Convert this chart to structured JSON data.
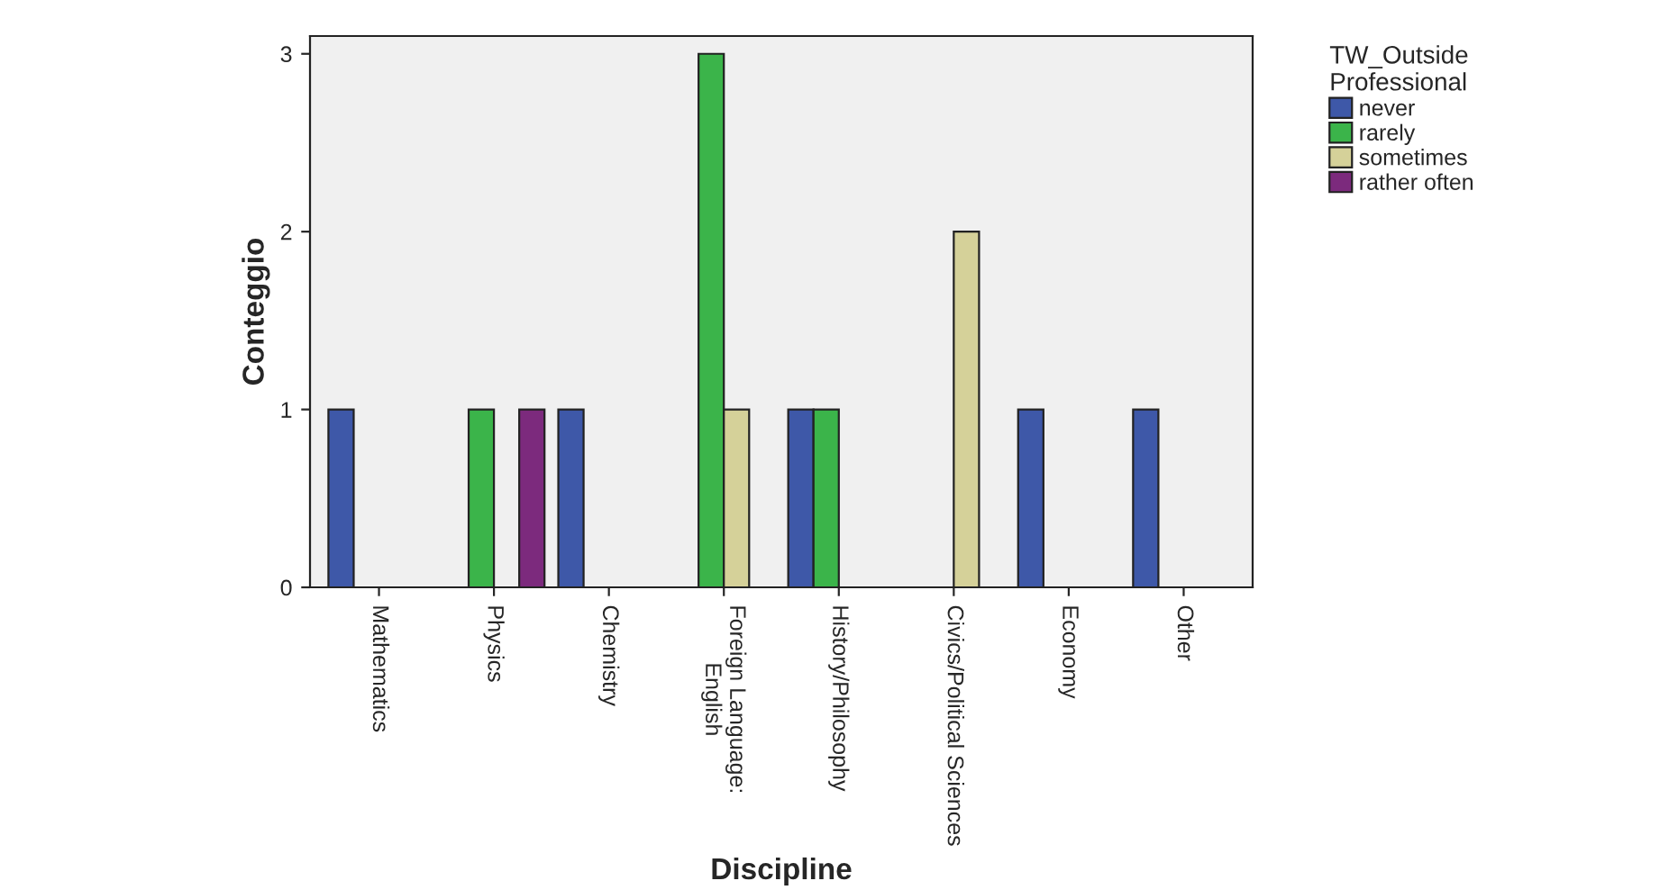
{
  "chart_data": {
    "type": "bar",
    "xlabel": "Discipline",
    "ylabel": "Conteggio",
    "legend_title": "TW_Outside\nProfessional",
    "categories": [
      "Mathematics",
      "Physics",
      "Chemistry",
      "Foreign Language:\nEnglish",
      "History/Philosophy",
      "Civics/Political Sciences",
      "Economy",
      "Other"
    ],
    "series": [
      {
        "name": "never",
        "color": "#3e58a8",
        "values": [
          1,
          null,
          1,
          null,
          1,
          null,
          1,
          1
        ]
      },
      {
        "name": "rarely",
        "color": "#3bb44a",
        "values": [
          null,
          1,
          null,
          3,
          1,
          null,
          null,
          null
        ]
      },
      {
        "name": "sometimes",
        "color": "#d5d199",
        "values": [
          null,
          null,
          null,
          1,
          null,
          2,
          null,
          null
        ]
      },
      {
        "name": "rather often",
        "color": "#7c2a7d",
        "values": [
          null,
          1,
          null,
          null,
          null,
          null,
          null,
          null
        ]
      }
    ],
    "ylim": [
      0,
      3.1
    ],
    "yticks": [
      0,
      1,
      2,
      3
    ],
    "grid": false,
    "legend": "top right"
  }
}
